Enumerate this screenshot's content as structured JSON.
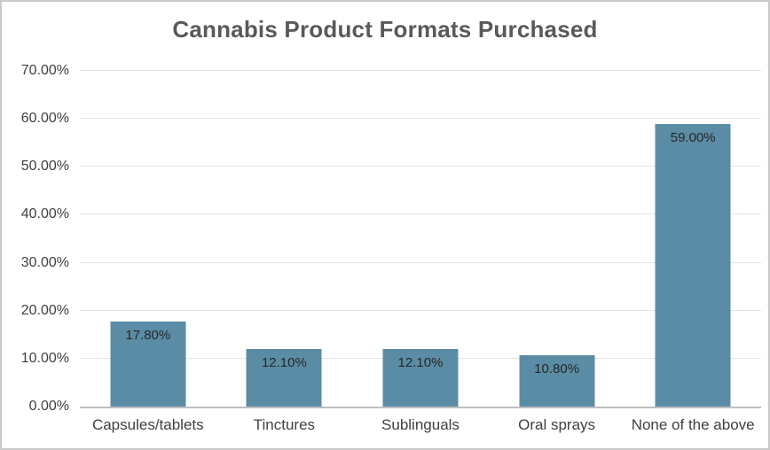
{
  "chart_data": {
    "type": "bar",
    "title": "Cannabis Product Formats Purchased",
    "categories": [
      "Capsules/tablets",
      "Tinctures",
      "Sublinguals",
      "Oral sprays",
      "None of the above"
    ],
    "values": [
      17.8,
      12.1,
      12.1,
      10.8,
      59.0
    ],
    "value_labels": [
      "17.80%",
      "12.10%",
      "12.10%",
      "10.80%",
      "59.00%"
    ],
    "xlabel": "",
    "ylabel": "",
    "ylim": [
      0,
      70
    ],
    "ytick_step": 10,
    "yticks": [
      {
        "value": 0,
        "label": "0.00%"
      },
      {
        "value": 10,
        "label": "10.00%"
      },
      {
        "value": 20,
        "label": "20.00%"
      },
      {
        "value": 30,
        "label": "30.00%"
      },
      {
        "value": 40,
        "label": "40.00%"
      },
      {
        "value": 50,
        "label": "50.00%"
      },
      {
        "value": 60,
        "label": "60.00%"
      },
      {
        "value": 70,
        "label": "70.00%"
      }
    ],
    "grid": true,
    "legend": false,
    "colors": {
      "bar": "#5b8ca5",
      "gridline": "#e4e4e4",
      "axis_line": "#bfbfbf",
      "frame_border": "#c9c9c9",
      "background": "#ffffff",
      "title_text": "#595959",
      "tick_text": "#404040",
      "value_label_text": "#262626",
      "category_text": "#404040"
    }
  }
}
